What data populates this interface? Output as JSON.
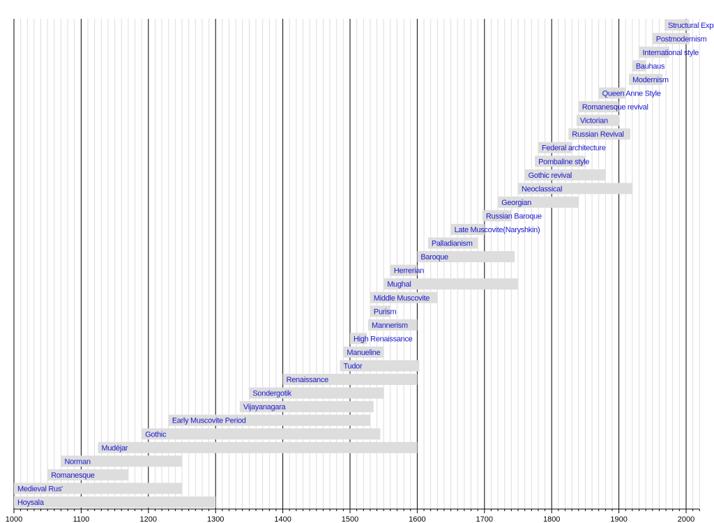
{
  "chart_data": {
    "type": "timeline",
    "title": "",
    "xlabel": "",
    "ylabel": "",
    "xlim": [
      1000,
      2020
    ],
    "x_ticks": [
      1000,
      1100,
      1200,
      1300,
      1400,
      1500,
      1600,
      1700,
      1800,
      1900,
      2000
    ],
    "grid": {
      "major_every": 100,
      "minor_every": 10
    },
    "colors": {
      "bar": "#dddddd",
      "label": "#1a1acc",
      "major_grid": "#000000",
      "minor_grid": "#dddddd"
    },
    "periods": [
      {
        "name": "Structural Expressionism",
        "start": 1968,
        "end": 2005
      },
      {
        "name": "Postmodernism",
        "start": 1950,
        "end": 2005
      },
      {
        "name": "International style",
        "start": 1930,
        "end": 1975
      },
      {
        "name": "Bauhaus",
        "start": 1920,
        "end": 1940
      },
      {
        "name": "Modernism",
        "start": 1915,
        "end": 1965
      },
      {
        "name": "Queen Anne Style",
        "start": 1870,
        "end": 1910
      },
      {
        "name": "Romanesque revival",
        "start": 1840,
        "end": 1900
      },
      {
        "name": "Victorian",
        "start": 1837,
        "end": 1901
      },
      {
        "name": "Russian Revival",
        "start": 1825,
        "end": 1917
      },
      {
        "name": "Federal architecture",
        "start": 1780,
        "end": 1830
      },
      {
        "name": "Pombaline style",
        "start": 1775,
        "end": 1850
      },
      {
        "name": "Gothic revival",
        "start": 1760,
        "end": 1880
      },
      {
        "name": "Neoclassical",
        "start": 1750,
        "end": 1920
      },
      {
        "name": "Georgian",
        "start": 1720,
        "end": 1840
      },
      {
        "name": "Russian Baroque",
        "start": 1697,
        "end": 1740
      },
      {
        "name": "Late Muscovite(Naryshkin)",
        "start": 1650,
        "end": 1700
      },
      {
        "name": "Palladianism",
        "start": 1616,
        "end": 1690
      },
      {
        "name": "Baroque",
        "start": 1600,
        "end": 1745
      },
      {
        "name": "Herrerian",
        "start": 1560,
        "end": 1600
      },
      {
        "name": "Mughal",
        "start": 1550,
        "end": 1750
      },
      {
        "name": "Middle Muscovite",
        "start": 1530,
        "end": 1630
      },
      {
        "name": "Purism",
        "start": 1530,
        "end": 1560
      },
      {
        "name": "Mannerism",
        "start": 1527,
        "end": 1600
      },
      {
        "name": "High Renaissance",
        "start": 1500,
        "end": 1525
      },
      {
        "name": "Manueline",
        "start": 1490,
        "end": 1550
      },
      {
        "name": "Tudor",
        "start": 1485,
        "end": 1603
      },
      {
        "name": "Renaissance",
        "start": 1400,
        "end": 1600
      },
      {
        "name": "Sondergotik",
        "start": 1350,
        "end": 1550
      },
      {
        "name": "Vijayanagara",
        "start": 1336,
        "end": 1535
      },
      {
        "name": "Early Muscovite Period",
        "start": 1230,
        "end": 1530
      },
      {
        "name": "Gothic",
        "start": 1190,
        "end": 1545
      },
      {
        "name": "Mudéjar",
        "start": 1125,
        "end": 1600
      },
      {
        "name": "Norman",
        "start": 1070,
        "end": 1250
      },
      {
        "name": "Romanesque",
        "start": 1050,
        "end": 1170
      },
      {
        "name": "Medieval Rus'",
        "start": 1000,
        "end": 1250
      },
      {
        "name": "Hoysala",
        "start": 1000,
        "end": 1300
      }
    ]
  }
}
